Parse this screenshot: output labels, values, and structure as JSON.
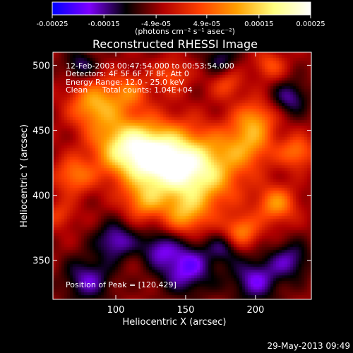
{
  "colorbar": {
    "ticks": [
      "-0.00025",
      "-0.00015",
      "-4.9e-05",
      "4.9e-05",
      "0.00015",
      "0.00025"
    ],
    "tick_values": [
      -0.00025,
      -0.00015,
      -4.9e-05,
      4.9e-05,
      0.00015,
      0.00025
    ],
    "range": [
      -0.00025,
      0.00025
    ],
    "units": "(photons cm⁻² s⁻¹ asec⁻²)",
    "colors": [
      "#0000ff",
      "#7f00ff",
      "#000000",
      "#b00000",
      "#ff4000",
      "#ffa000",
      "#ffff80",
      "#ffffff"
    ]
  },
  "chart_data": {
    "type": "heatmap",
    "title": "Reconstructed RHESSI Image",
    "xlabel": "Heliocentric X (arcsec)",
    "ylabel": "Heliocentric Y (arcsec)",
    "xlim": [
      55,
      240
    ],
    "ylim": [
      320,
      510
    ],
    "x_ticks": [
      100,
      150,
      200
    ],
    "y_ticks": [
      350,
      400,
      450,
      500
    ],
    "value_range": [
      -0.00025,
      0.00025
    ],
    "peak": [
      120,
      429
    ],
    "blobs": [
      {
        "x": 130,
        "y": 428,
        "amp": 0.00025,
        "r": 18
      },
      {
        "x": 160,
        "y": 418,
        "amp": 0.00022,
        "r": 20
      },
      {
        "x": 105,
        "y": 438,
        "amp": 0.00018,
        "r": 16
      },
      {
        "x": 85,
        "y": 470,
        "amp": 0.00016,
        "r": 13
      },
      {
        "x": 70,
        "y": 415,
        "amp": 0.00012,
        "r": 10
      },
      {
        "x": 110,
        "y": 480,
        "amp": 0.0001,
        "r": 10
      },
      {
        "x": 140,
        "y": 492,
        "amp": 9e-05,
        "r": 9
      },
      {
        "x": 195,
        "y": 440,
        "amp": 0.00013,
        "r": 13
      },
      {
        "x": 200,
        "y": 460,
        "amp": 0.00011,
        "r": 10
      },
      {
        "x": 215,
        "y": 393,
        "amp": 0.00014,
        "r": 10
      },
      {
        "x": 190,
        "y": 372,
        "amp": 0.00013,
        "r": 9
      },
      {
        "x": 150,
        "y": 385,
        "amp": 0.00012,
        "r": 11
      },
      {
        "x": 120,
        "y": 395,
        "amp": 0.00011,
        "r": 10
      },
      {
        "x": 230,
        "y": 433,
        "amp": 0.00012,
        "r": 9
      },
      {
        "x": 210,
        "y": 500,
        "amp": 9e-05,
        "r": 8
      },
      {
        "x": 180,
        "y": 485,
        "amp": 8e-05,
        "r": 8
      },
      {
        "x": 60,
        "y": 385,
        "amp": 7e-05,
        "r": 8
      },
      {
        "x": 100,
        "y": 365,
        "amp": -0.00012,
        "r": 10
      },
      {
        "x": 150,
        "y": 345,
        "amp": -0.00014,
        "r": 14
      },
      {
        "x": 200,
        "y": 335,
        "amp": -0.00012,
        "r": 12
      },
      {
        "x": 80,
        "y": 335,
        "amp": -0.00011,
        "r": 12
      },
      {
        "x": 75,
        "y": 500,
        "amp": -9e-05,
        "r": 8
      },
      {
        "x": 225,
        "y": 475,
        "amp": -0.0001,
        "r": 9
      },
      {
        "x": 175,
        "y": 505,
        "amp": -8e-05,
        "r": 8
      },
      {
        "x": 225,
        "y": 350,
        "amp": -0.0001,
        "r": 10
      },
      {
        "x": 130,
        "y": 360,
        "amp": -9e-05,
        "r": 9
      },
      {
        "x": 178,
        "y": 360,
        "amp": -8e-05,
        "r": 8
      }
    ]
  },
  "annotations": {
    "time_range": "12-Feb-2003 00:47:54.000 to 00:53:54.000",
    "detectors": "Detectors: 4F 5F 6F 7F 8F, Att 0",
    "energy": "Energy Range: 12.0 - 25.0 keV",
    "method": "Clean",
    "total_counts": "Total counts: 1.04E+04",
    "peak_label": "Position of Peak = [120,429]"
  },
  "footer": {
    "timestamp": "29-May-2013 09:49"
  }
}
